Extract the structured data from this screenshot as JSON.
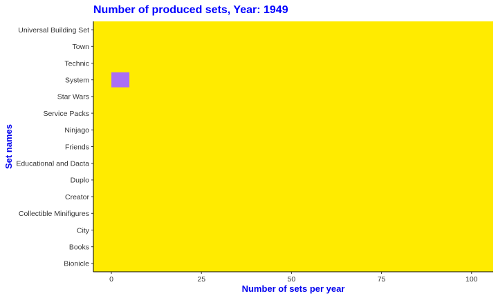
{
  "chart_data": {
    "type": "bar",
    "title": "Number of produced sets, Year: 1949",
    "xlabel": "Number of sets per year",
    "ylabel": "Set names",
    "categories": [
      "Universal Building Set",
      "Town",
      "Technic",
      "System",
      "Star Wars",
      "Service Packs",
      "Ninjago",
      "Friends",
      "Educational and Dacta",
      "Duplo",
      "Creator",
      "Collectible Minifigures",
      "City",
      "Books",
      "Bionicle"
    ],
    "values": [
      0,
      0,
      0,
      5,
      0,
      0,
      0,
      0,
      0,
      0,
      0,
      0,
      0,
      0,
      0
    ],
    "xlim": [
      -5,
      106
    ],
    "xticks": [
      0,
      25,
      50,
      75,
      100
    ],
    "grid": false,
    "legend": "none"
  },
  "colors": {
    "panel_background": "#FFEB00",
    "bar_fill": "#AA6EF5",
    "title_color": "#0000FF",
    "axis_title_color": "#0000EE",
    "tick_label_color": "#333333",
    "axis_line_color": "#000000"
  }
}
